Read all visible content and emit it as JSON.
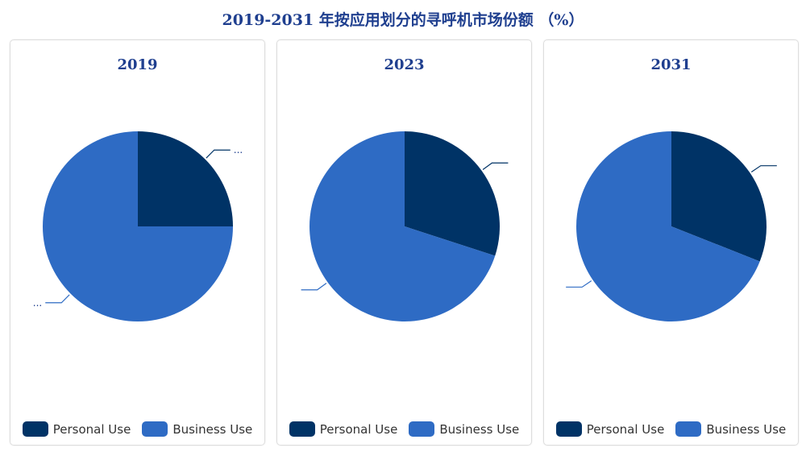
{
  "title": "2019-2031 年按应用划分的寻呼机市场份额 （%）",
  "colors": {
    "Personal Use": "#003366",
    "Business Use": "#2e6bc4"
  },
  "chart_data": [
    {
      "type": "pie",
      "title": "2019",
      "categories": [
        "Personal Use",
        "Business Use"
      ],
      "values": [
        25,
        75
      ],
      "data_labels": [
        "...",
        "..."
      ],
      "legend": "bottom"
    },
    {
      "type": "pie",
      "title": "2023",
      "categories": [
        "Personal Use",
        "Business Use"
      ],
      "values": [
        30,
        70
      ],
      "data_labels": [
        "",
        ""
      ],
      "legend": "bottom"
    },
    {
      "type": "pie",
      "title": "2031",
      "categories": [
        "Personal Use",
        "Business Use"
      ],
      "values": [
        31,
        69
      ],
      "data_labels": [
        "",
        ""
      ],
      "legend": "bottom"
    }
  ]
}
